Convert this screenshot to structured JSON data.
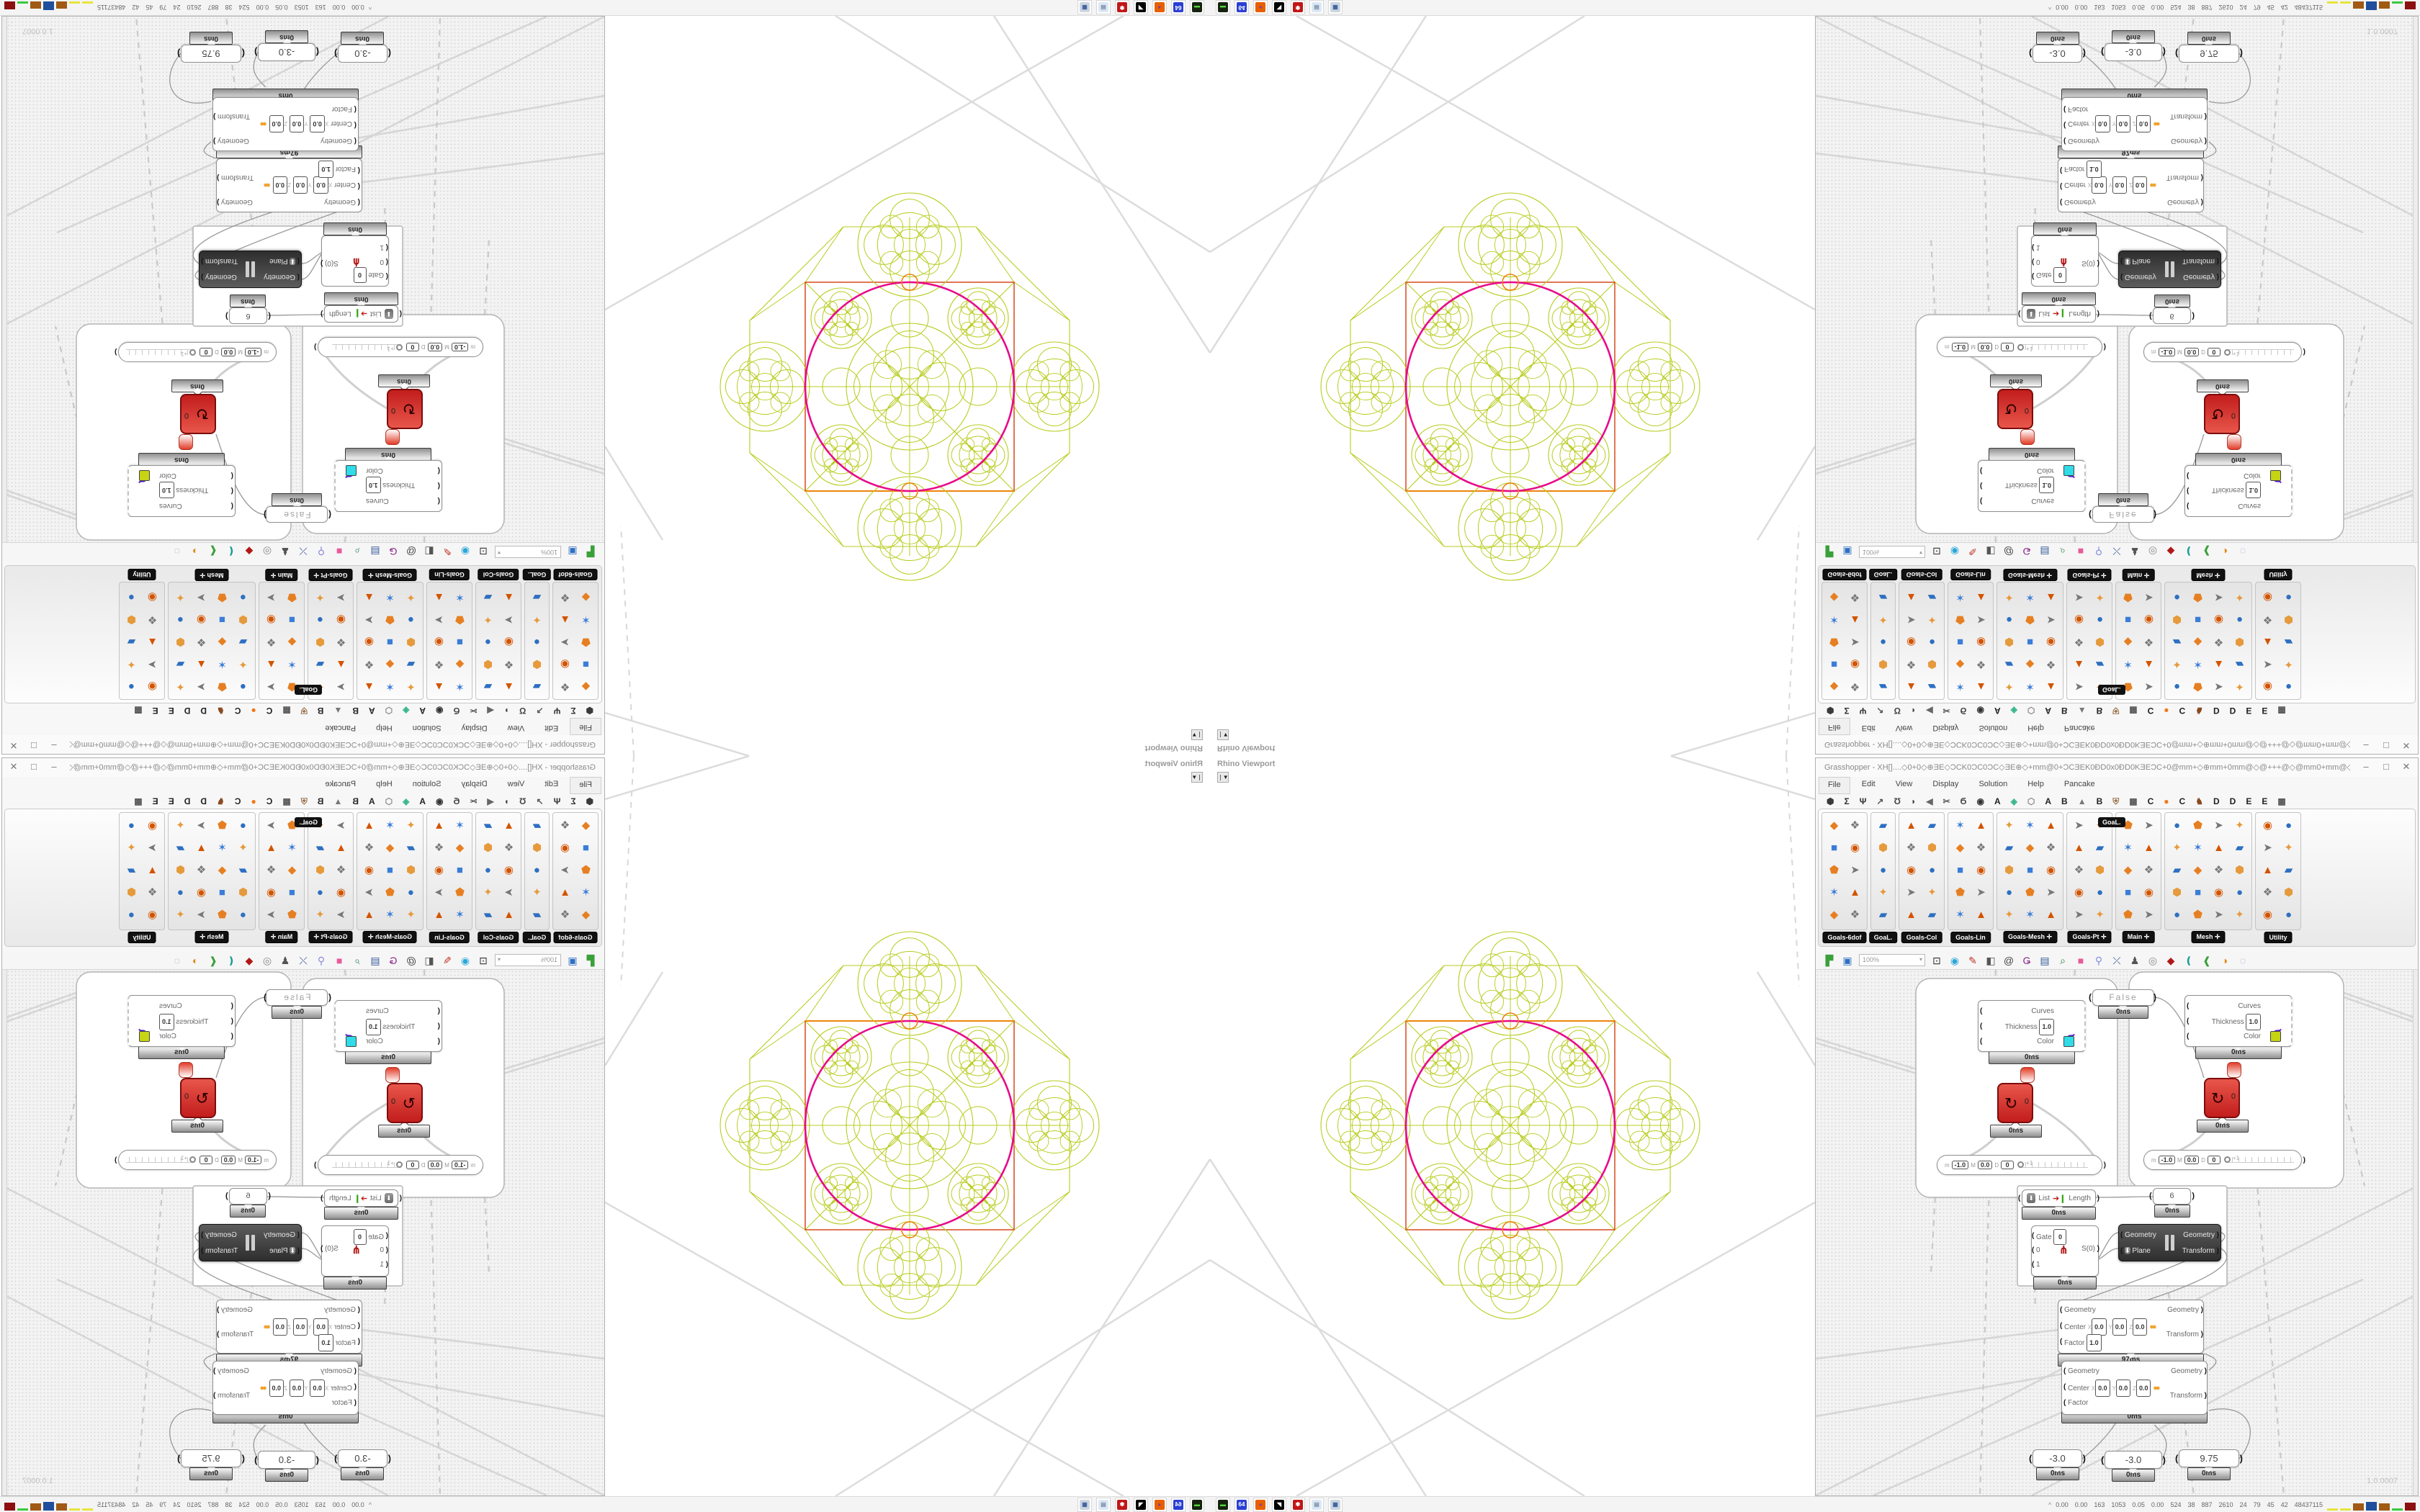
{
  "window": {
    "title": "Grasshopper - XH[]....◇0+0◇⊕ƎE◇ƆCK0ƆC0ƆC◇ƎE⊕◇+mm@0+ƆCƎEK0ƉD0x0ƉD0KƎEƆC+0@mm+◇⊕mm+0mm@◇@+++@◇@mm0+mm@◇+mm@0+ƆCƎEK0ƉD0x0...",
    "buttons": {
      "minimize": "–",
      "maximize": "□",
      "close": "✕"
    }
  },
  "menu": {
    "items": [
      "File",
      "Edit",
      "View",
      "Display",
      "Solution",
      "Help",
      "Pancake"
    ]
  },
  "tabs": [
    {
      "g": "⬢",
      "c": "#3a3a3a"
    },
    {
      "g": "Σ",
      "c": "#333"
    },
    {
      "g": "Ψ",
      "c": "#333"
    },
    {
      "g": "↗",
      "c": "#555"
    },
    {
      "g": "Ʊ",
      "c": "#444"
    },
    {
      "g": "◗",
      "c": "#444"
    },
    {
      "g": "◀",
      "c": "#666"
    },
    {
      "g": "✂",
      "c": "#555"
    },
    {
      "g": "Ϭ",
      "c": "#444"
    },
    {
      "g": "◉",
      "c": "#333"
    },
    {
      "g": "A",
      "c": "#222"
    },
    {
      "g": "◈",
      "c": "#35b58a"
    },
    {
      "g": "⬡",
      "c": "#888"
    },
    {
      "g": "A",
      "c": "#222"
    },
    {
      "g": "B",
      "c": "#222"
    },
    {
      "g": "▲",
      "c": "#777"
    },
    {
      "g": "B",
      "c": "#222"
    },
    {
      "g": "⛨",
      "c": "#9a6f4a"
    },
    {
      "g": "▦",
      "c": "#555"
    },
    {
      "g": "C",
      "c": "#222"
    },
    {
      "g": "●",
      "c": "#f07818"
    },
    {
      "g": "C",
      "c": "#222"
    },
    {
      "g": "♞",
      "c": "#8a4a20"
    },
    {
      "g": "D",
      "c": "#222"
    },
    {
      "g": "D",
      "c": "#222"
    },
    {
      "g": "E",
      "c": "#222"
    },
    {
      "g": "E",
      "c": "#222"
    },
    {
      "g": "▩",
      "c": "#555"
    }
  ],
  "palette": {
    "tooltip": "GoaL.",
    "rows": 5,
    "groups": [
      {
        "label": "Goals-6dof",
        "cols": 2,
        "arrow": false
      },
      {
        "label": "GoaL.",
        "cols": 1,
        "arrow": false
      },
      {
        "label": "Goals-Col",
        "cols": 2,
        "arrow": false
      },
      {
        "label": "Goals-Lin",
        "cols": 2,
        "arrow": false
      },
      {
        "label": "Goals-Mesh",
        "cols": 3,
        "arrow": true
      },
      {
        "label": "Goals-Pt",
        "cols": 2,
        "arrow": true
      },
      {
        "label": "Main",
        "cols": 2,
        "arrow": true
      },
      {
        "label": "Mesh",
        "cols": 4,
        "arrow": true
      },
      {
        "label": "Utility",
        "cols": 2,
        "arrow": false
      }
    ]
  },
  "toolbar": {
    "zoom": "100%",
    "icons": [
      {
        "name": "open-file-icon",
        "g": "▛",
        "c": "#3aa03a"
      },
      {
        "name": "save-file-icon",
        "g": "▣",
        "c": "#2d6fc2"
      },
      {
        "name": "zoom-extents-icon",
        "g": "⊡",
        "c": "#333"
      },
      {
        "name": "preview-eye-icon",
        "g": "◉",
        "c": "#2aa7d8"
      },
      {
        "name": "sketch-pen-icon",
        "g": "✎",
        "c": "#c03020"
      },
      {
        "name": "exit-door-icon",
        "g": "◧",
        "c": "#555"
      },
      {
        "name": "at-icon",
        "g": "@",
        "c": "#444"
      },
      {
        "name": "gha-icon",
        "g": "Ǥ",
        "c": "#8a2a8a"
      },
      {
        "name": "note-icon",
        "g": "▤",
        "c": "#335a9a"
      },
      {
        "name": "find-icon",
        "g": "⌕",
        "c": "#2a7a4a"
      },
      {
        "name": "package-icon",
        "g": "■",
        "c": "#e85a9a"
      },
      {
        "name": "bulb-icon",
        "g": "⚲",
        "c": "#8a8ae0"
      },
      {
        "name": "shuffle-icon",
        "g": "⤫",
        "c": "#334a9a"
      },
      {
        "name": "ink-icon",
        "g": "♟",
        "c": "#555"
      },
      {
        "name": "donut-icon",
        "g": "◎",
        "c": "#888"
      },
      {
        "name": "gem-red-icon",
        "g": "◆",
        "c": "#b01818"
      },
      {
        "name": "drop-teal-icon",
        "g": "❪",
        "c": "#1a9a9a"
      },
      {
        "name": "drop-green-icon",
        "g": "❰",
        "c": "#3aa03a"
      },
      {
        "name": "drop-orange-icon",
        "g": "◑",
        "c": "#e08a1a"
      },
      {
        "name": "selection-circle-icon",
        "g": "◌",
        "c": "#8aa0c8"
      }
    ]
  },
  "viewport": {
    "title": "Rhino Viewport",
    "collapse_icon": "❘▼"
  },
  "canvas": {
    "version": "1.0.0007",
    "grip": "⋰",
    "nodes": {
      "toggle": {
        "label": "False",
        "ms": "0ms"
      },
      "preview1": {
        "in_curves": "Curves",
        "in_thickness": "Thickness",
        "thickness": "1.0",
        "in_color": "Color",
        "swatch": "#30dce8",
        "ms": "0ms"
      },
      "preview2": {
        "in_curves": "Curves",
        "in_thickness": "Thickness",
        "thickness": "1.0",
        "in_color": "Color",
        "swatch": "#c6d414",
        "ms": "0ms"
      },
      "solver1": {
        "out": "0",
        "ms": "0ms"
      },
      "solver2": {
        "out": "0",
        "ms": "0ms"
      },
      "mdslider1": {
        "m": "m",
        "min": "-1.0",
        "M": "M",
        "max": "0.0",
        "D": "D",
        "d": "0",
        "k": "+1"
      },
      "mdslider2": {
        "m": "m",
        "min": "-1.0",
        "M": "M",
        "max": "0.0",
        "D": "D",
        "d": "0",
        "k": "+1"
      },
      "listlen": {
        "in": "List",
        "out": "Length",
        "ms": "0ms",
        "icon": "⬇"
      },
      "panel6": {
        "value": "6",
        "ms": "0ms"
      },
      "gate": {
        "in_gate": "Gate",
        "gate_val": "0",
        "row0": "0",
        "row1": "1",
        "out": "S(0)",
        "ms": "0ms"
      },
      "orient": {
        "in1": "Geometry",
        "in2": "Plane",
        "out1": "Geometry",
        "out2": "Transform",
        "icon": "⬇"
      },
      "scale1": {
        "in1": "Geometry",
        "in2": "Center",
        "x": "X",
        "y": "Y",
        "z": "Z",
        "vx": "0.0",
        "vy": "0.0",
        "vz": "0.0",
        "in3": "Factor",
        "factor": "1.0",
        "out1": "Geometry",
        "out2": "Transform",
        "ms": "97ms"
      },
      "scale2": {
        "in1": "Geometry",
        "in2": "Center",
        "x": "X",
        "y": "Y",
        "z": "Z",
        "vx": "0.0",
        "vy": "0.0",
        "vz": "0.0",
        "in3": "Factor",
        "out1": "Geometry",
        "out2": "Transform",
        "ms": "0ms"
      },
      "slider_a": {
        "value": "-3.0",
        "ms": "0ms"
      },
      "slider_b": {
        "value": "-3.0",
        "ms": "0ms"
      },
      "slider_c": {
        "value": "9.75",
        "ms": "0ms"
      }
    }
  },
  "taskbar": {
    "tiles": [
      {
        "name": "drive-app",
        "bg": "#16240f",
        "fg": "#52d83c",
        "g": "▬"
      },
      {
        "name": "backup-64",
        "bg": "#2b3fd2",
        "fg": "#ffffff",
        "g": "64"
      },
      {
        "name": "firefox",
        "bg": "#e66000",
        "fg": "#7a2fb8",
        "g": "◕"
      },
      {
        "name": "rhino",
        "bg": "#000000",
        "fg": "#ffffff",
        "g": "◥"
      },
      {
        "name": "red-badge",
        "bg": "#c01818",
        "fg": "#ffffff",
        "g": "✾"
      },
      {
        "name": "notepad",
        "bg": "#dce8f5",
        "fg": "#7a8ea8",
        "g": "▤"
      },
      {
        "name": "calculator",
        "bg": "#cdd6e0",
        "fg": "#3a5f9e",
        "g": "▦"
      }
    ],
    "monitor": {
      "chevron": "^",
      "values": [
        "0.00",
        "0.00",
        "163",
        "1053",
        "0.05",
        "0.00",
        "524",
        "38",
        "887",
        "2610",
        "24",
        "79",
        "45",
        "42",
        "48437115"
      ],
      "blocks": [
        {
          "c": "#e8e43c",
          "h": 3
        },
        {
          "c": "#e8e43c",
          "h": 3
        },
        {
          "c": "#a05a14",
          "h": 10
        },
        {
          "c": "#1f4f9c",
          "h": 12
        },
        {
          "c": "#a05a14",
          "h": 10
        },
        {
          "c": "#3ac83a",
          "h": 3
        },
        {
          "c": "#8c1010",
          "h": 11
        }
      ]
    }
  },
  "figure": {
    "chartreuse": "#b8cc1e",
    "magenta": "#e80b8a",
    "square": "#d8491c",
    "square_top": "#ee830d",
    "accent": "#f08011"
  }
}
